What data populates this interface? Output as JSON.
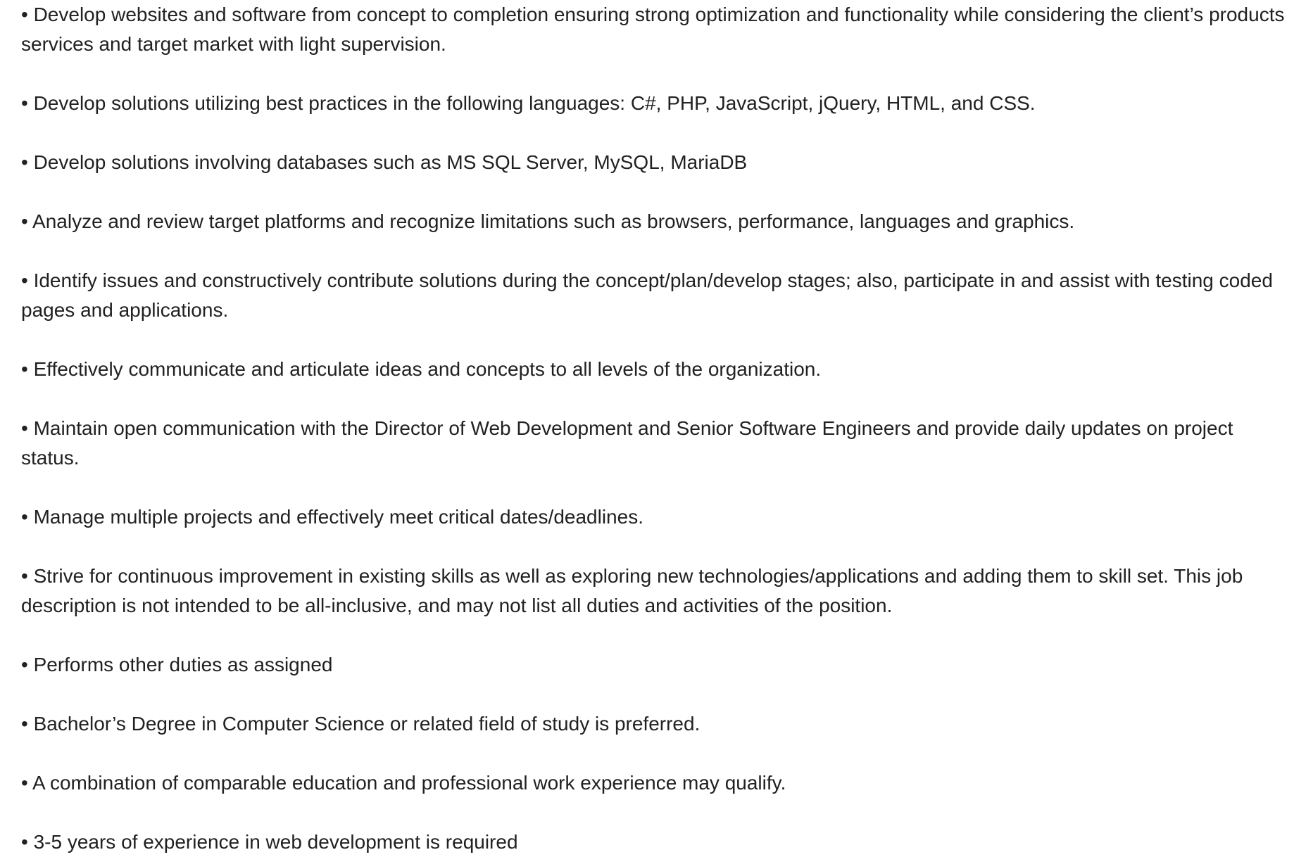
{
  "description": {
    "items": [
      "• Develop websites and software from concept to completion ensuring strong optimization and functionality while considering the client’s products services and target market with light supervision.",
      "• Develop solutions utilizing best practices in the following languages: C#, PHP, JavaScript, jQuery, HTML, and CSS.",
      "• Develop solutions involving databases such as MS SQL Server, MySQL, MariaDB",
      "• Analyze and review target platforms and recognize limitations such as browsers, performance, languages and graphics.",
      "• Identify issues and constructively contribute solutions during the concept/plan/develop stages; also, participate in and assist with testing coded pages and applications.",
      "• Effectively communicate and articulate ideas and concepts to all levels of the organization.",
      "• Maintain open communication with the Director of Web Development and Senior Software Engineers and provide daily updates on project status.",
      "• Manage multiple projects and effectively meet critical dates/deadlines.",
      "• Strive for continuous improvement in existing skills as well as exploring new technologies/applications and adding them to skill set. This job description is not intended to be all-inclusive, and may not list all duties and activities of the position.",
      "• Performs other duties as assigned",
      "• Bachelor’s Degree in Computer Science or related field of study is preferred.",
      "• A combination of comparable education and professional work experience may qualify.",
      "• 3-5 years of experience in web development is required"
    ]
  }
}
